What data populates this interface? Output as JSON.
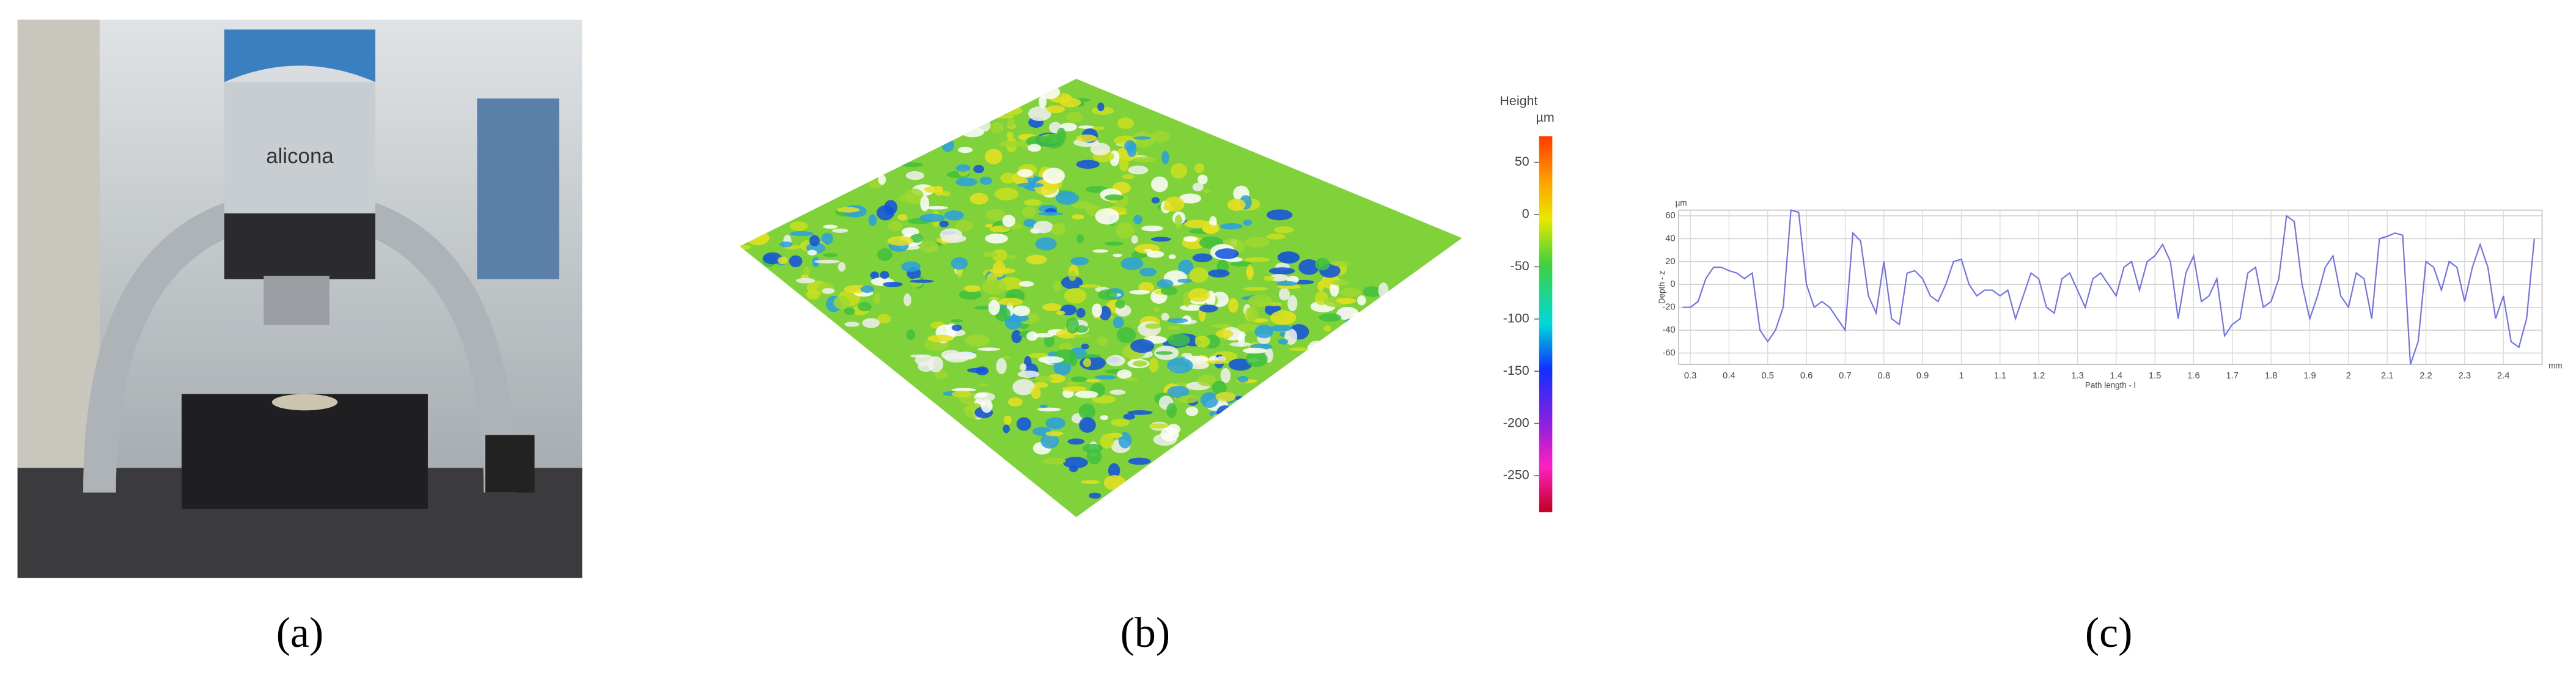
{
  "panels": [
    "(a)",
    "(b)",
    "(c)"
  ],
  "photo": {
    "brand": "alicona"
  },
  "surface": {
    "colorbar_title": "Height",
    "colorbar_unit": "µm",
    "clim": [
      -285,
      75
    ],
    "cticks": [
      50,
      0,
      -50,
      -100,
      -150,
      -200,
      -250
    ]
  },
  "chart_data": {
    "type": "line",
    "color": "#6f6ff0",
    "grid": true,
    "xlabel": "Path length - l",
    "ylabel": "Depth - z",
    "y_unit": "µm",
    "x_unit": "mm",
    "xlim": [
      0.27,
      2.5
    ],
    "ylim": [
      -70,
      65
    ],
    "xticks": [
      0.3,
      0.4,
      0.5,
      0.6,
      0.7,
      0.8,
      0.9,
      1,
      1.1,
      1.2,
      1.3,
      1.4,
      1.5,
      1.6,
      1.7,
      1.8,
      1.9,
      2,
      2.1,
      2.2,
      2.3,
      2.4
    ],
    "yticks": [
      60,
      40,
      20,
      0,
      -20,
      -40,
      -60
    ],
    "x": [
      0.28,
      0.3,
      0.32,
      0.34,
      0.36,
      0.38,
      0.4,
      0.42,
      0.44,
      0.46,
      0.48,
      0.5,
      0.52,
      0.54,
      0.56,
      0.58,
      0.6,
      0.62,
      0.64,
      0.66,
      0.68,
      0.7,
      0.72,
      0.74,
      0.76,
      0.78,
      0.8,
      0.82,
      0.84,
      0.86,
      0.88,
      0.9,
      0.92,
      0.94,
      0.96,
      0.98,
      1.0,
      1.02,
      1.04,
      1.06,
      1.08,
      1.1,
      1.12,
      1.14,
      1.16,
      1.18,
      1.2,
      1.22,
      1.24,
      1.26,
      1.28,
      1.3,
      1.32,
      1.34,
      1.36,
      1.38,
      1.4,
      1.42,
      1.44,
      1.46,
      1.48,
      1.5,
      1.52,
      1.54,
      1.56,
      1.58,
      1.6,
      1.62,
      1.64,
      1.66,
      1.68,
      1.7,
      1.72,
      1.74,
      1.76,
      1.78,
      1.8,
      1.82,
      1.84,
      1.86,
      1.88,
      1.9,
      1.92,
      1.94,
      1.96,
      1.98,
      2.0,
      2.02,
      2.04,
      2.06,
      2.08,
      2.1,
      2.12,
      2.14,
      2.16,
      2.18,
      2.2,
      2.22,
      2.24,
      2.26,
      2.28,
      2.3,
      2.32,
      2.34,
      2.36,
      2.38,
      2.4,
      2.42,
      2.44,
      2.46,
      2.48
    ],
    "values": [
      -20,
      -20,
      -15,
      5,
      15,
      15,
      12,
      10,
      5,
      10,
      -40,
      -50,
      -40,
      -20,
      65,
      63,
      0,
      -20,
      -15,
      -20,
      -30,
      -40,
      45,
      38,
      -10,
      -25,
      20,
      -30,
      -35,
      10,
      12,
      5,
      -10,
      -15,
      0,
      20,
      22,
      0,
      -10,
      -5,
      -5,
      -10,
      -5,
      -30,
      -10,
      10,
      5,
      -20,
      -25,
      5,
      10,
      -5,
      -20,
      5,
      10,
      0,
      -10,
      15,
      20,
      -5,
      20,
      25,
      35,
      20,
      -30,
      10,
      25,
      -15,
      -10,
      5,
      -45,
      -35,
      -30,
      10,
      15,
      -20,
      -15,
      5,
      60,
      55,
      0,
      -30,
      -10,
      15,
      25,
      -10,
      -20,
      10,
      5,
      -30,
      40,
      42,
      45,
      43,
      -70,
      -50,
      20,
      15,
      -5,
      20,
      15,
      -15,
      15,
      35,
      15,
      -30,
      -10,
      -50,
      -55,
      -30,
      40
    ]
  }
}
